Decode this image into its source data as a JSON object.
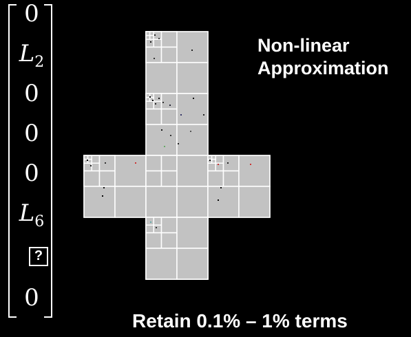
{
  "title": {
    "line1": "Non-linear",
    "line2": "Approximation"
  },
  "caption": "Retain 0.1% – 1% terms",
  "vector": {
    "entries": [
      {
        "base": "0",
        "sub": ""
      },
      {
        "base": "L",
        "sub": "2"
      },
      {
        "base": "0",
        "sub": ""
      },
      {
        "base": "0",
        "sub": ""
      },
      {
        "base": "0",
        "sub": ""
      },
      {
        "base": "L",
        "sub": "6"
      },
      {
        "base": "?",
        "sub": "",
        "boxed": true
      },
      {
        "base": "0",
        "sub": ""
      }
    ]
  },
  "cubemap": {
    "face_color": "#c2c2c2",
    "line_color": "#ffffff",
    "faces": [
      "top",
      "front",
      "left",
      "right",
      "bottom",
      "back"
    ]
  }
}
